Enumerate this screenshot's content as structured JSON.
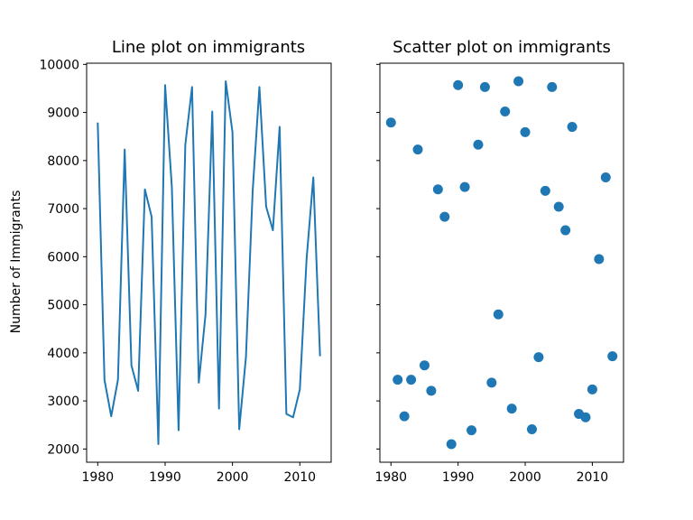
{
  "chart_data": [
    {
      "type": "line",
      "title": "Line plot on immigrants",
      "xlabel": "",
      "ylabel": "Number of Immigrants",
      "xlim": [
        1978.35,
        2014.65
      ],
      "ylim": [
        1725,
        10025
      ],
      "xticks": [
        1980,
        1990,
        2000,
        2010
      ],
      "yticks": [
        2000,
        3000,
        4000,
        5000,
        6000,
        7000,
        8000,
        9000,
        10000
      ],
      "color": "#1f77b4",
      "x": [
        1980,
        1981,
        1982,
        1983,
        1984,
        1985,
        1986,
        1987,
        1988,
        1989,
        1990,
        1991,
        1992,
        1993,
        1994,
        1995,
        1996,
        1997,
        1998,
        1999,
        2000,
        2001,
        2002,
        2003,
        2004,
        2005,
        2006,
        2007,
        2008,
        2009,
        2010,
        2011,
        2012,
        2013
      ],
      "y": [
        8790,
        3440,
        2680,
        3440,
        8230,
        3740,
        3210,
        7400,
        6830,
        2100,
        9570,
        7450,
        2390,
        8330,
        9530,
        3380,
        4800,
        9020,
        2840,
        9650,
        8590,
        2410,
        3910,
        7370,
        9530,
        7040,
        6550,
        8700,
        2730,
        2660,
        3240,
        5950,
        7650,
        3930
      ]
    },
    {
      "type": "scatter",
      "title": "Scatter plot on immigrants",
      "xlabel": "",
      "ylabel": "",
      "xlim": [
        1978.35,
        2014.65
      ],
      "ylim": [
        1725,
        10025
      ],
      "xticks": [
        1980,
        1990,
        2000,
        2010
      ],
      "yticks": [
        2000,
        3000,
        4000,
        5000,
        6000,
        7000,
        8000,
        9000,
        10000
      ],
      "sharey": true,
      "color": "#1f77b4",
      "x": [
        1980,
        1981,
        1982,
        1983,
        1984,
        1985,
        1986,
        1987,
        1988,
        1989,
        1990,
        1991,
        1992,
        1993,
        1994,
        1995,
        1996,
        1997,
        1998,
        1999,
        2000,
        2001,
        2002,
        2003,
        2004,
        2005,
        2006,
        2007,
        2008,
        2009,
        2010,
        2011,
        2012,
        2013
      ],
      "y": [
        8790,
        3440,
        2680,
        3440,
        8230,
        3740,
        3210,
        7400,
        6830,
        2100,
        9570,
        7450,
        2390,
        8330,
        9530,
        3380,
        4800,
        9020,
        2840,
        9650,
        8590,
        2410,
        3910,
        7370,
        9530,
        7040,
        6550,
        8700,
        2730,
        2660,
        3240,
        5950,
        7650,
        3930
      ]
    }
  ]
}
